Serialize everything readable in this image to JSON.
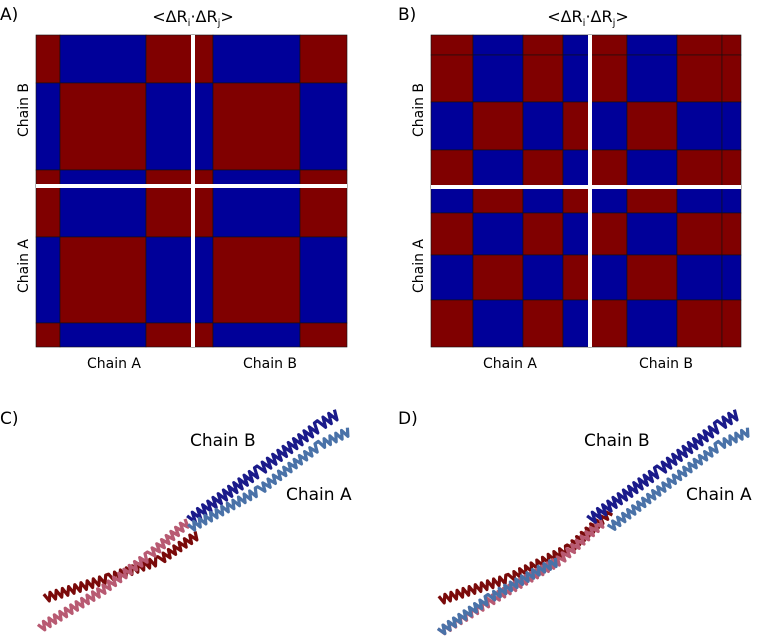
{
  "panels": [
    {
      "label": "A)",
      "title": {
        "open": "<ΔR",
        "i": "i",
        "dot": "·ΔR",
        "j": "j",
        "close": ">"
      },
      "y_labels": [
        "Chain B",
        "Chain A"
      ],
      "x_labels": [
        "Chain A",
        "Chain B"
      ]
    },
    {
      "label": "B)",
      "title": {
        "open": "<ΔR",
        "i": "i",
        "dot": "·ΔR",
        "j": "j",
        "close": ">"
      },
      "y_labels": [
        "Chain B",
        "Chain A"
      ],
      "x_labels": [
        "Chain A",
        "Chain B"
      ]
    },
    {
      "label": "C)",
      "chain_labels": [
        "Chain B",
        "Chain A"
      ]
    },
    {
      "label": "D)",
      "chain_labels": [
        "Chain B",
        "Chain A"
      ]
    }
  ]
}
